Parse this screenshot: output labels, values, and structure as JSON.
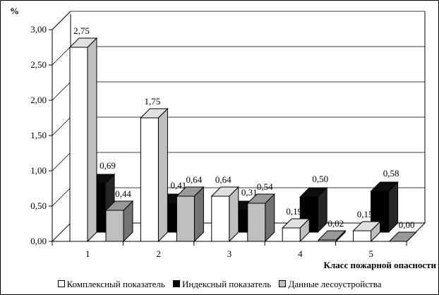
{
  "chart_data": {
    "type": "bar",
    "ylabel": "%",
    "xlabel": "Класс пожарной опасности",
    "categories": [
      "1",
      "2",
      "3",
      "4",
      "5"
    ],
    "ylim": [
      0,
      3
    ],
    "yticks": [
      "0,00",
      "0,50",
      "1,00",
      "1,50",
      "2,00",
      "2,50",
      "3,00"
    ],
    "ytick_values": [
      0,
      0.5,
      1,
      1.5,
      2,
      2.5,
      3
    ],
    "grid": true,
    "legend_position": "bottom",
    "series": [
      {
        "name": "Комплексный показатель",
        "color": "#ffffff",
        "values": [
          2.75,
          1.75,
          0.64,
          0.19,
          0.15
        ],
        "labels": [
          "2,75",
          "1,75",
          "0,64",
          "0,19",
          "0,15"
        ]
      },
      {
        "name": "Индексный показатель",
        "color": "#000000",
        "values": [
          0.69,
          0.41,
          0.31,
          0.5,
          0.58
        ],
        "labels": [
          "0,69",
          "0,41",
          "0,31",
          "0,50",
          "0,58"
        ]
      },
      {
        "name": "Данные лесоустройства",
        "color": "#bfbfbf",
        "values": [
          0.44,
          0.64,
          0.54,
          0.02,
          0.0
        ],
        "labels": [
          "0,44",
          "0,64",
          "0,54",
          "0,02",
          "0,00"
        ]
      }
    ]
  }
}
